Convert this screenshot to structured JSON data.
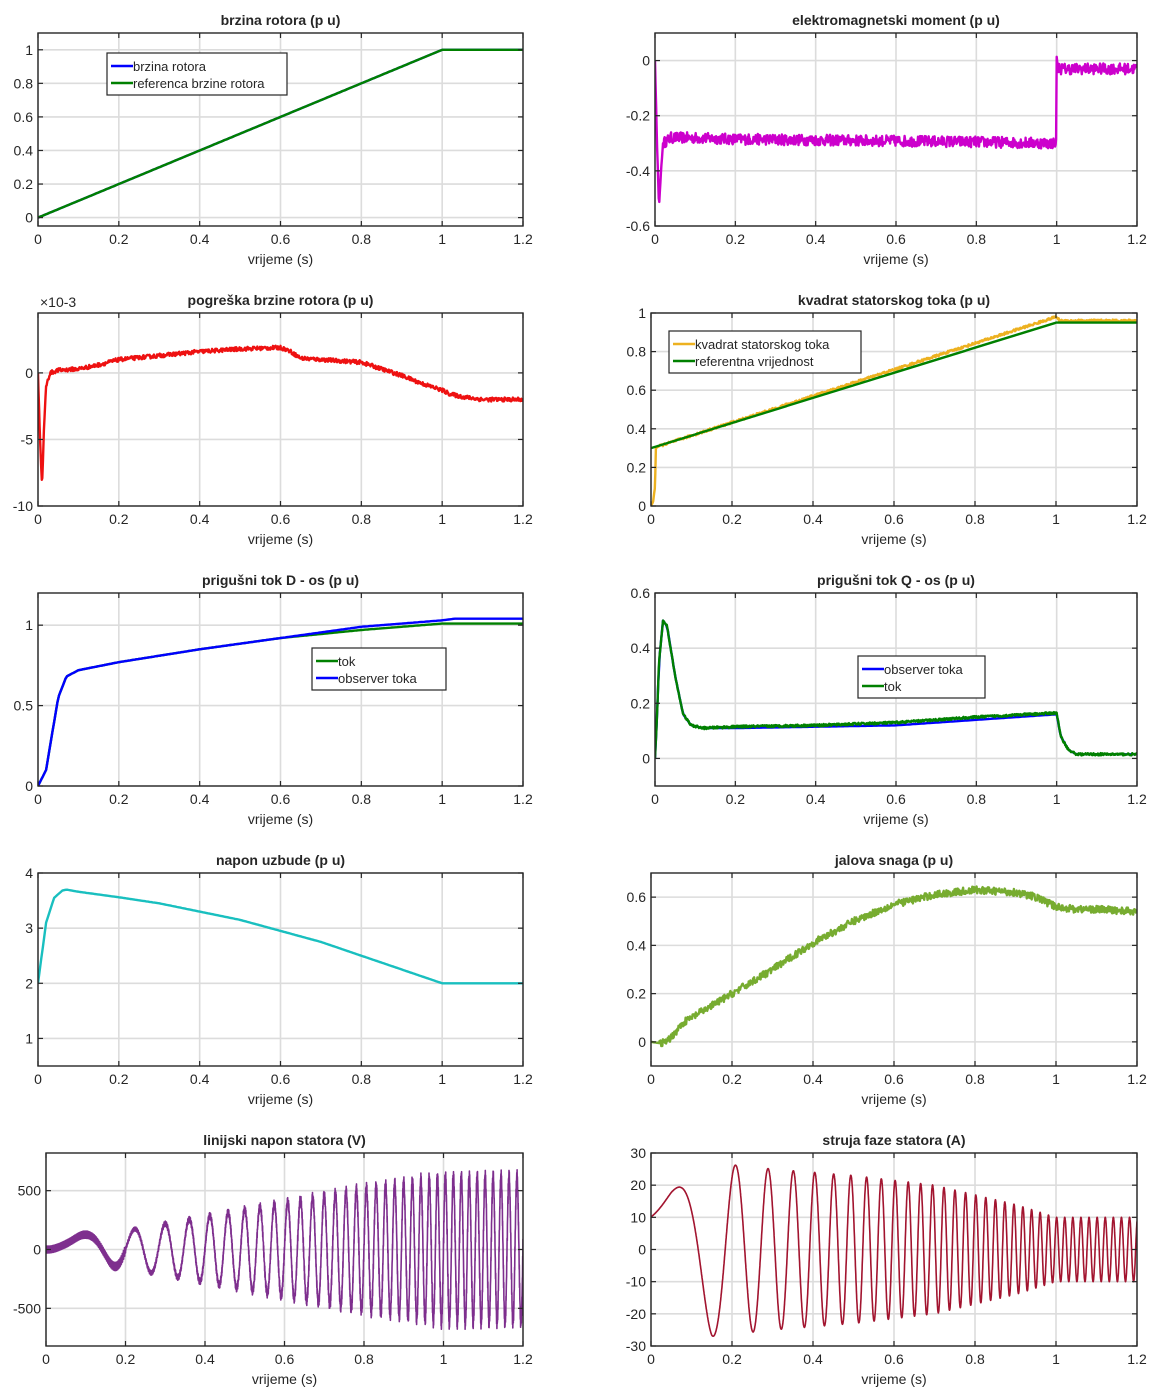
{
  "chart_data": [
    {
      "type": "line",
      "title": "brzina rotora (p u)",
      "xlabel": "vrijeme (s)",
      "ylabel": "",
      "xlim": [
        0,
        1.2
      ],
      "ylim": [
        -0.05,
        1.1
      ],
      "xticks": [
        0,
        0.2,
        0.4,
        0.6,
        0.8,
        1,
        1.2
      ],
      "yticks": [
        0,
        0.2,
        0.4,
        0.6,
        0.8,
        1
      ],
      "xtick_labels": [
        "0",
        "0.2",
        "0.4",
        "0.6",
        "0.8",
        "1",
        "1.2"
      ],
      "ytick_labels": [
        "0",
        "0.2",
        "0.4",
        "0.6",
        "0.8",
        "1"
      ],
      "grid": true,
      "legend": "top-left",
      "series": [
        {
          "name": "brzina rotora",
          "color": "#0000ff",
          "x": [
            0,
            1,
            1.2
          ],
          "y": [
            0,
            1,
            1
          ]
        },
        {
          "name": "referenca brzine rotora",
          "color": "#008000",
          "x": [
            0,
            1,
            1.2
          ],
          "y": [
            0,
            1,
            1
          ]
        }
      ]
    },
    {
      "type": "line",
      "title": "elektromagnetski moment (p u)",
      "xlabel": "vrijeme (s)",
      "ylabel": "",
      "xlim": [
        0,
        1.2
      ],
      "ylim": [
        -0.6,
        0.1
      ],
      "xticks": [
        0,
        0.2,
        0.4,
        0.6,
        0.8,
        1,
        1.2
      ],
      "yticks": [
        -0.6,
        -0.4,
        -0.2,
        0
      ],
      "xtick_labels": [
        "0",
        "0.2",
        "0.4",
        "0.6",
        "0.8",
        "1",
        "1.2"
      ],
      "ytick_labels": [
        "-0.6",
        "-0.4",
        "-0.2",
        "0"
      ],
      "grid": true,
      "legend": "none",
      "series": [
        {
          "color": "#cc00cc",
          "x": [
            0,
            0.005,
            0.01,
            0.015,
            0.02,
            0.04,
            0.08,
            0.2,
            0.5,
            0.8,
            0.999,
            1.0,
            1.001,
            1.01,
            1.1,
            1.2
          ],
          "y": [
            0,
            -0.3,
            -0.53,
            -0.4,
            -0.3,
            -0.28,
            -0.28,
            -0.285,
            -0.29,
            -0.295,
            -0.3,
            0.03,
            -0.02,
            -0.03,
            -0.03,
            -0.03
          ],
          "noise_amplitude": 0.02
        }
      ]
    },
    {
      "type": "line",
      "title": "pogreška brzine rotora (p u)",
      "xlabel": "vrijeme (s)",
      "ylabel": "",
      "y_multiplier_label": "×10-3",
      "xlim": [
        0,
        1.2
      ],
      "ylim": [
        -10,
        4.5
      ],
      "xticks": [
        0,
        0.2,
        0.4,
        0.6,
        0.8,
        1,
        1.2
      ],
      "yticks": [
        -10,
        -5,
        0
      ],
      "xtick_labels": [
        "0",
        "0.2",
        "0.4",
        "0.6",
        "0.8",
        "1",
        "1.2"
      ],
      "ytick_labels": [
        "-10",
        "-5",
        "0"
      ],
      "grid": true,
      "legend": "none",
      "series": [
        {
          "color": "#ee1111",
          "x": [
            0,
            0.005,
            0.01,
            0.015,
            0.02,
            0.03,
            0.05,
            0.1,
            0.15,
            0.2,
            0.3,
            0.4,
            0.5,
            0.6,
            0.62,
            0.65,
            0.7,
            0.8,
            0.85,
            0.9,
            0.95,
            1.0,
            1.02,
            1.05,
            1.1,
            1.2
          ],
          "y": [
            0,
            -5,
            -8.5,
            -4,
            -1,
            0,
            0.2,
            0.3,
            0.6,
            1.0,
            1.3,
            1.6,
            1.8,
            1.9,
            1.7,
            1.1,
            1.0,
            0.8,
            0.3,
            -0.2,
            -0.8,
            -1.3,
            -1.6,
            -1.8,
            -2.0,
            -2.0
          ],
          "noise_amplitude": 0.15
        }
      ]
    },
    {
      "type": "line",
      "title": "kvadrat statorskog toka (p u)",
      "xlabel": "vrijeme (s)",
      "ylabel": "",
      "xlim": [
        0,
        1.2
      ],
      "ylim": [
        0,
        1
      ],
      "xticks": [
        0,
        0.2,
        0.4,
        0.6,
        0.8,
        1,
        1.2
      ],
      "yticks": [
        0,
        0.2,
        0.4,
        0.6,
        0.8,
        1
      ],
      "xtick_labels": [
        "0",
        "0.2",
        "0.4",
        "0.6",
        "0.8",
        "1",
        "1.2"
      ],
      "ytick_labels": [
        "0",
        "0.2",
        "0.4",
        "0.6",
        "0.8",
        "1"
      ],
      "grid": true,
      "legend": "top-left",
      "series": [
        {
          "name": "kvadrat statorskog toka",
          "color": "#edb120",
          "x": [
            0,
            0.005,
            0.01,
            0.012,
            0.02,
            1.0,
            1.01,
            1.2
          ],
          "y": [
            0,
            0.02,
            0.1,
            0.3,
            0.31,
            0.98,
            0.96,
            0.96
          ],
          "noise_amplitude": 0.006
        },
        {
          "name": "referentna vrijednost",
          "color": "#008000",
          "x": [
            0,
            1,
            1.2
          ],
          "y": [
            0.3,
            0.95,
            0.95
          ]
        }
      ]
    },
    {
      "type": "line",
      "title": "prigušni tok D - os (p u)",
      "xlabel": "vrijeme (s)",
      "ylabel": "",
      "xlim": [
        0,
        1.2
      ],
      "ylim": [
        0,
        1.2
      ],
      "xticks": [
        0,
        0.2,
        0.4,
        0.6,
        0.8,
        1,
        1.2
      ],
      "yticks": [
        0,
        0.5,
        1
      ],
      "xtick_labels": [
        "0",
        "0.2",
        "0.4",
        "0.6",
        "0.8",
        "1",
        "1.2"
      ],
      "ytick_labels": [
        "0",
        "0.5",
        "1"
      ],
      "grid": true,
      "legend": "center-right",
      "series": [
        {
          "name": "tok",
          "color": "#008000",
          "x": [
            0,
            0.01,
            0.02,
            0.03,
            0.05,
            0.07,
            0.1,
            0.2,
            0.4,
            0.6,
            0.8,
            1.0,
            1.2
          ],
          "y": [
            0,
            0.05,
            0.1,
            0.25,
            0.55,
            0.68,
            0.72,
            0.77,
            0.85,
            0.92,
            0.97,
            1.01,
            1.01
          ]
        },
        {
          "name": "observer toka",
          "color": "#0000ff",
          "x": [
            0,
            0.01,
            0.02,
            0.03,
            0.05,
            0.07,
            0.1,
            0.2,
            0.4,
            0.6,
            0.8,
            1.0,
            1.03,
            1.2
          ],
          "y": [
            0,
            0.05,
            0.1,
            0.25,
            0.55,
            0.68,
            0.72,
            0.77,
            0.85,
            0.92,
            0.99,
            1.03,
            1.04,
            1.04
          ]
        }
      ]
    },
    {
      "type": "line",
      "title": "prigušni tok Q - os (p u)",
      "xlabel": "vrijeme (s)",
      "ylabel": "",
      "xlim": [
        0,
        1.2
      ],
      "ylim": [
        -0.1,
        0.6
      ],
      "xticks": [
        0,
        0.2,
        0.4,
        0.6,
        0.8,
        1,
        1.2
      ],
      "yticks": [
        0,
        0.2,
        0.4,
        0.6
      ],
      "xtick_labels": [
        "0",
        "0.2",
        "0.4",
        "0.6",
        "0.8",
        "1",
        "1.2"
      ],
      "ytick_labels": [
        "0",
        "0.2",
        "0.4",
        "0.6"
      ],
      "grid": true,
      "legend": "center-right",
      "series": [
        {
          "name": "observer toka",
          "color": "#0000ff",
          "x": [
            0,
            0.005,
            0.01,
            0.02,
            0.03,
            0.05,
            0.07,
            0.09,
            0.12,
            0.2,
            0.4,
            0.6,
            0.8,
            1.0,
            1.01,
            1.03,
            1.05,
            1.2
          ],
          "y": [
            0,
            0.15,
            0.35,
            0.5,
            0.48,
            0.3,
            0.16,
            0.12,
            0.11,
            0.11,
            0.115,
            0.12,
            0.14,
            0.16,
            0.08,
            0.03,
            0.015,
            0.015
          ]
        },
        {
          "name": "tok",
          "color": "#008000",
          "x": [
            0,
            0.005,
            0.01,
            0.02,
            0.03,
            0.05,
            0.07,
            0.09,
            0.12,
            0.2,
            0.4,
            0.6,
            0.8,
            1.0,
            1.01,
            1.03,
            1.05,
            1.2
          ],
          "y": [
            0,
            0.15,
            0.35,
            0.5,
            0.48,
            0.3,
            0.16,
            0.12,
            0.11,
            0.115,
            0.12,
            0.13,
            0.15,
            0.165,
            0.08,
            0.03,
            0.015,
            0.015
          ],
          "noise_amplitude": 0.004
        }
      ]
    },
    {
      "type": "line",
      "title": "napon uzbude (p u)",
      "xlabel": "vrijeme (s)",
      "ylabel": "",
      "xlim": [
        0,
        1.2
      ],
      "ylim": [
        0.5,
        4
      ],
      "xticks": [
        0,
        0.2,
        0.4,
        0.6,
        0.8,
        1,
        1.2
      ],
      "yticks": [
        1,
        2,
        3,
        4
      ],
      "xtick_labels": [
        "0",
        "0.2",
        "0.4",
        "0.6",
        "0.8",
        "1",
        "1.2"
      ],
      "ytick_labels": [
        "1",
        "2",
        "3",
        "4"
      ],
      "grid": true,
      "legend": "none",
      "series": [
        {
          "color": "#19bfbf",
          "x": [
            0,
            0.02,
            0.04,
            0.06,
            0.07,
            0.1,
            0.2,
            0.3,
            0.4,
            0.5,
            0.6,
            0.7,
            0.8,
            0.9,
            1.0,
            1.2
          ],
          "y": [
            2.0,
            3.1,
            3.55,
            3.68,
            3.7,
            3.66,
            3.56,
            3.45,
            3.3,
            3.15,
            2.95,
            2.75,
            2.5,
            2.25,
            2.0,
            2.0
          ]
        }
      ]
    },
    {
      "type": "line",
      "title": "jalova snaga (p u)",
      "xlabel": "vrijeme (s)",
      "ylabel": "",
      "xlim": [
        0,
        1.2
      ],
      "ylim": [
        -0.1,
        0.7
      ],
      "xticks": [
        0,
        0.2,
        0.4,
        0.6,
        0.8,
        1,
        1.2
      ],
      "yticks": [
        0,
        0.2,
        0.4,
        0.6
      ],
      "xtick_labels": [
        "0",
        "0.2",
        "0.4",
        "0.6",
        "0.8",
        "1",
        "1.2"
      ],
      "ytick_labels": [
        "0",
        "0.2",
        "0.4",
        "0.6"
      ],
      "grid": true,
      "legend": "none",
      "series": [
        {
          "color": "#77ac30",
          "x": [
            0,
            0.02,
            0.04,
            0.06,
            0.08,
            0.1,
            0.15,
            0.2,
            0.3,
            0.4,
            0.5,
            0.6,
            0.7,
            0.8,
            0.9,
            0.95,
            1.0,
            1.05,
            1.1,
            1.2
          ],
          "y": [
            0,
            -0.005,
            0.0,
            0.04,
            0.08,
            0.1,
            0.15,
            0.2,
            0.3,
            0.41,
            0.5,
            0.57,
            0.61,
            0.63,
            0.62,
            0.6,
            0.56,
            0.55,
            0.55,
            0.54
          ],
          "noise_amplitude": 0.015
        }
      ]
    },
    {
      "type": "line",
      "title": "linijski napon statora (V)",
      "xlabel": "vrijeme (s)",
      "ylabel": "",
      "xlim": [
        0,
        1.2
      ],
      "ylim": [
        -820,
        820
      ],
      "xticks": [
        0,
        0.2,
        0.4,
        0.6,
        0.8,
        1,
        1.2
      ],
      "yticks": [
        -500,
        0,
        500
      ],
      "xtick_labels": [
        "0",
        "0.2",
        "0.4",
        "0.6",
        "0.8",
        "1",
        "1.2"
      ],
      "ytick_labels": [
        "-500",
        "0",
        "500"
      ],
      "grid": true,
      "legend": "none",
      "series": [
        {
          "color": "#7e2f8e",
          "waveform": "sinusoid with linearly rising frequency and amplitude, PWM ripple",
          "amplitude_x": [
            0,
            0.15,
            0.4,
            0.8,
            1.0,
            1.2
          ],
          "amplitude_y": [
            120,
            130,
            280,
            520,
            620,
            620
          ],
          "frequency_x": [
            0,
            1.0,
            1.2
          ],
          "frequency_hz": [
            0,
            50,
            50
          ]
        }
      ]
    },
    {
      "type": "line",
      "title": "struja faze statora (A)",
      "xlabel": "vrijeme (s)",
      "ylabel": "",
      "xlim": [
        0,
        1.2
      ],
      "ylim": [
        -30,
        30
      ],
      "xticks": [
        0,
        0.2,
        0.4,
        0.6,
        0.8,
        1,
        1.2
      ],
      "yticks": [
        -30,
        -20,
        -10,
        0,
        10,
        20,
        30
      ],
      "xtick_labels": [
        "0",
        "0.2",
        "0.4",
        "0.6",
        "0.8",
        "1",
        "1.2"
      ],
      "ytick_labels": [
        "-30",
        "-20",
        "-10",
        "0",
        "10",
        "20",
        "30"
      ],
      "grid": true,
      "legend": "none",
      "series": [
        {
          "color": "#a2142f",
          "waveform": "sinusoid with rising frequency, decaying amplitude",
          "amplitude_x": [
            0,
            0.05,
            0.15,
            0.3,
            0.5,
            0.7,
            0.9,
            1.0,
            1.2
          ],
          "amplitude_y": [
            12,
            18,
            27,
            25,
            23,
            20,
            14,
            10,
            10
          ],
          "frequency_x": [
            0,
            1.0,
            1.2
          ],
          "frequency_hz": [
            0,
            50,
            50
          ]
        }
      ]
    }
  ]
}
